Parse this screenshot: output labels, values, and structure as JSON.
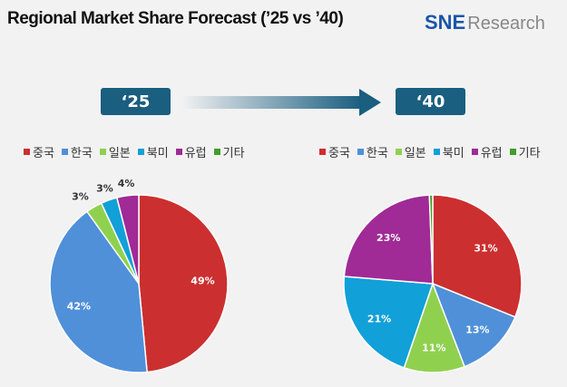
{
  "title": "Regional Market Share Forecast (’25 vs ’40)",
  "logo": {
    "sne": "SNE",
    "research": "Research"
  },
  "years": {
    "left": "‘25",
    "right": "‘40"
  },
  "chart_data": [
    {
      "type": "pie",
      "title": "‘25",
      "categories": [
        "중국",
        "한국",
        "일본",
        "북미",
        "유럽",
        "기타"
      ],
      "values": [
        49,
        42,
        3,
        3,
        4,
        0
      ],
      "labels": [
        "49%",
        "42%",
        "3%",
        "3%",
        "4%",
        ""
      ],
      "colors": [
        "#cc2f2f",
        "#4f90d9",
        "#8fd14f",
        "#11a0d8",
        "#a02a96",
        "#3ea02a"
      ],
      "legend": "top"
    },
    {
      "type": "pie",
      "title": "‘40",
      "categories": [
        "중국",
        "한국",
        "일본",
        "북미",
        "유럽",
        "기타"
      ],
      "values": [
        31,
        13,
        11,
        21,
        23,
        0.6
      ],
      "labels": [
        "31%",
        "13%",
        "11%",
        "21%",
        "23%",
        ""
      ],
      "colors": [
        "#cc2f2f",
        "#4f90d9",
        "#8fd14f",
        "#11a0d8",
        "#a02a96",
        "#3ea02a"
      ],
      "legend": "top"
    }
  ]
}
